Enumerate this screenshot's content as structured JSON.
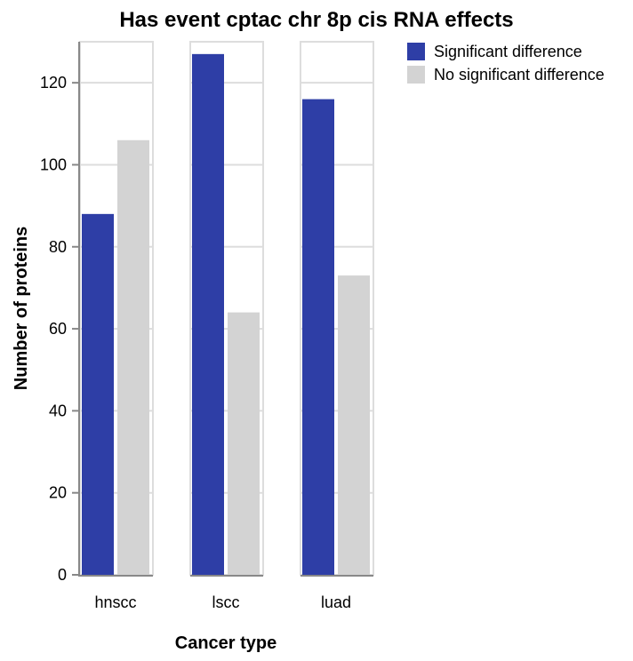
{
  "chart_data": {
    "type": "bar",
    "title": "Has event cptac chr 8p cis RNA effects",
    "xlabel": "Cancer type",
    "ylabel": "Number of proteins",
    "categories": [
      "hnscc",
      "lscc",
      "luad"
    ],
    "series": [
      {
        "name": "Significant difference",
        "color": "#2e3ea6",
        "values": [
          88,
          127,
          116
        ]
      },
      {
        "name": "No significant difference",
        "color": "#d3d3d3",
        "values": [
          106,
          64,
          73
        ]
      }
    ],
    "ylim": [
      0,
      130
    ],
    "yticks": [
      0,
      20,
      40,
      60,
      80,
      100,
      120
    ],
    "grid": true,
    "legend": "top-right",
    "faceted": true
  }
}
